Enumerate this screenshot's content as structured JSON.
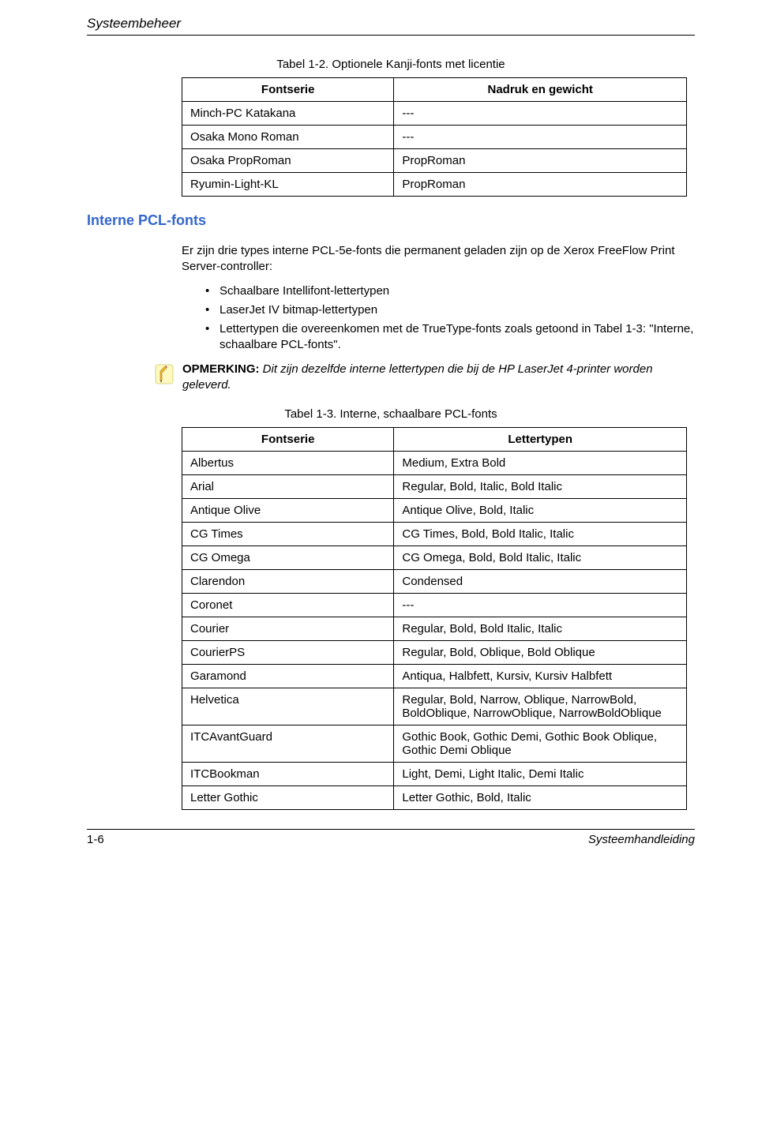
{
  "header": "Systeembeheer",
  "table1": {
    "caption": "Tabel 1-2. Optionele Kanji-fonts met licentie",
    "col1": "Fontserie",
    "col2": "Nadruk en gewicht",
    "rows": [
      {
        "c1": "Minch-PC Katakana",
        "c2": "---"
      },
      {
        "c1": "Osaka Mono Roman",
        "c2": "---"
      },
      {
        "c1": "Osaka PropRoman",
        "c2": "PropRoman"
      },
      {
        "c1": "Ryumin-Light-KL",
        "c2": "PropRoman"
      }
    ]
  },
  "section_heading": "Interne PCL-fonts",
  "intro": "Er zijn drie types interne PCL-5e-fonts die permanent geladen zijn op de Xerox FreeFlow Print Server-controller:",
  "bullets": [
    "Schaalbare Intellifont-lettertypen",
    "LaserJet IV bitmap-lettertypen",
    "Lettertypen die overeenkomen met de TrueType-fonts zoals getoond in Tabel 1-3: \"Interne, schaalbare PCL-fonts\"."
  ],
  "note_label": "OPMERKING:",
  "note_text": " Dit zijn dezelfde interne lettertypen die bij de HP LaserJet 4-printer worden geleverd.",
  "table2": {
    "caption": "Tabel 1-3. Interne, schaalbare PCL-fonts",
    "col1": "Fontserie",
    "col2": "Lettertypen",
    "rows": [
      {
        "c1": "Albertus",
        "c2": "Medium, Extra Bold"
      },
      {
        "c1": "Arial",
        "c2": "Regular, Bold, Italic, Bold Italic"
      },
      {
        "c1": "Antique Olive",
        "c2": "Antique Olive, Bold, Italic"
      },
      {
        "c1": "CG Times",
        "c2": "CG Times, Bold, Bold Italic, Italic"
      },
      {
        "c1": "CG Omega",
        "c2": "CG Omega, Bold, Bold Italic, Italic"
      },
      {
        "c1": "Clarendon",
        "c2": "Condensed"
      },
      {
        "c1": "Coronet",
        "c2": "---"
      },
      {
        "c1": "Courier",
        "c2": "Regular, Bold, Bold Italic, Italic"
      },
      {
        "c1": "CourierPS",
        "c2": "Regular, Bold, Oblique, Bold Oblique"
      },
      {
        "c1": "Garamond",
        "c2": "Antiqua, Halbfett, Kursiv, Kursiv Halbfett"
      },
      {
        "c1": "Helvetica",
        "c2": "Regular, Bold, Narrow, Oblique, NarrowBold, BoldOblique, NarrowOblique, NarrowBoldOblique"
      },
      {
        "c1": "ITCAvantGuard",
        "c2": "Gothic Book, Gothic Demi, Gothic Book Oblique, Gothic Demi Oblique"
      },
      {
        "c1": "ITCBookman",
        "c2": "Light, Demi, Light Italic, Demi Italic"
      },
      {
        "c1": "Letter Gothic",
        "c2": "Letter Gothic, Bold, Italic"
      }
    ]
  },
  "footer": {
    "left": "1-6",
    "right": "Systeemhandleiding"
  }
}
